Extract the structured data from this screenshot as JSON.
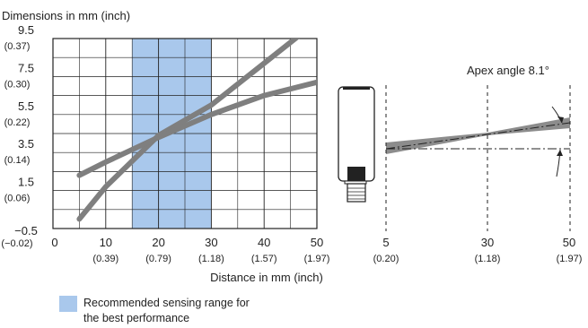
{
  "chart_data": {
    "type": "line",
    "title": "Dimensions in mm (inch)",
    "xlabel": "Distance in mm (inch)",
    "xlim": [
      0,
      50
    ],
    "ylim": [
      -0.5,
      9.5
    ],
    "x_ticks": [
      {
        "value": 0,
        "main": "0",
        "sub": ""
      },
      {
        "value": 10,
        "main": "10",
        "sub": "(0.39)"
      },
      {
        "value": 20,
        "main": "20",
        "sub": "(0.79)"
      },
      {
        "value": 30,
        "main": "30",
        "sub": "(1.18)"
      },
      {
        "value": 40,
        "main": "40",
        "sub": "(1.57)"
      },
      {
        "value": 50,
        "main": "50",
        "sub": "(1.97)"
      }
    ],
    "y_ticks": [
      {
        "value": 9.5,
        "main": "9.5",
        "sub": "(0.37)"
      },
      {
        "value": 7.5,
        "main": "7.5",
        "sub": "(0.30)"
      },
      {
        "value": 5.5,
        "main": "5.5",
        "sub": "(0.22)"
      },
      {
        "value": 3.5,
        "main": "3.5",
        "sub": "(0.14)"
      },
      {
        "value": 1.5,
        "main": "1.5",
        "sub": "(0.06)"
      },
      {
        "value": -0.5,
        "main": "−0.5",
        "sub": "(−0.02)"
      }
    ],
    "grid": true,
    "highlight_range": {
      "x": [
        15,
        30
      ],
      "color": "#a9c8ec",
      "label": "Recommended sensing range for the best performance"
    },
    "series": [
      {
        "values": [
          [
            5,
            0.0
          ],
          [
            10,
            1.7
          ],
          [
            20,
            4.4
          ],
          [
            30,
            6.0
          ],
          [
            40,
            8.2
          ],
          [
            50,
            10.4
          ]
        ],
        "color": "#7f7f7f"
      },
      {
        "values": [
          [
            5,
            2.3
          ],
          [
            10,
            3.0
          ],
          [
            20,
            4.3
          ],
          [
            30,
            5.5
          ],
          [
            40,
            6.5
          ],
          [
            50,
            7.2
          ]
        ],
        "color": "#7f7f7f"
      }
    ]
  },
  "diagram": {
    "apex_angle_label": "Apex angle 8.1°",
    "distances": [
      {
        "main": "5",
        "sub": "(0.20)"
      },
      {
        "main": "30",
        "sub": "(1.18)"
      },
      {
        "main": "50",
        "sub": "(1.97)"
      }
    ]
  },
  "legend": {
    "text_line1": "Recommended sensing range for",
    "text_line2": "the best performance",
    "color": "#a9c8ec"
  }
}
